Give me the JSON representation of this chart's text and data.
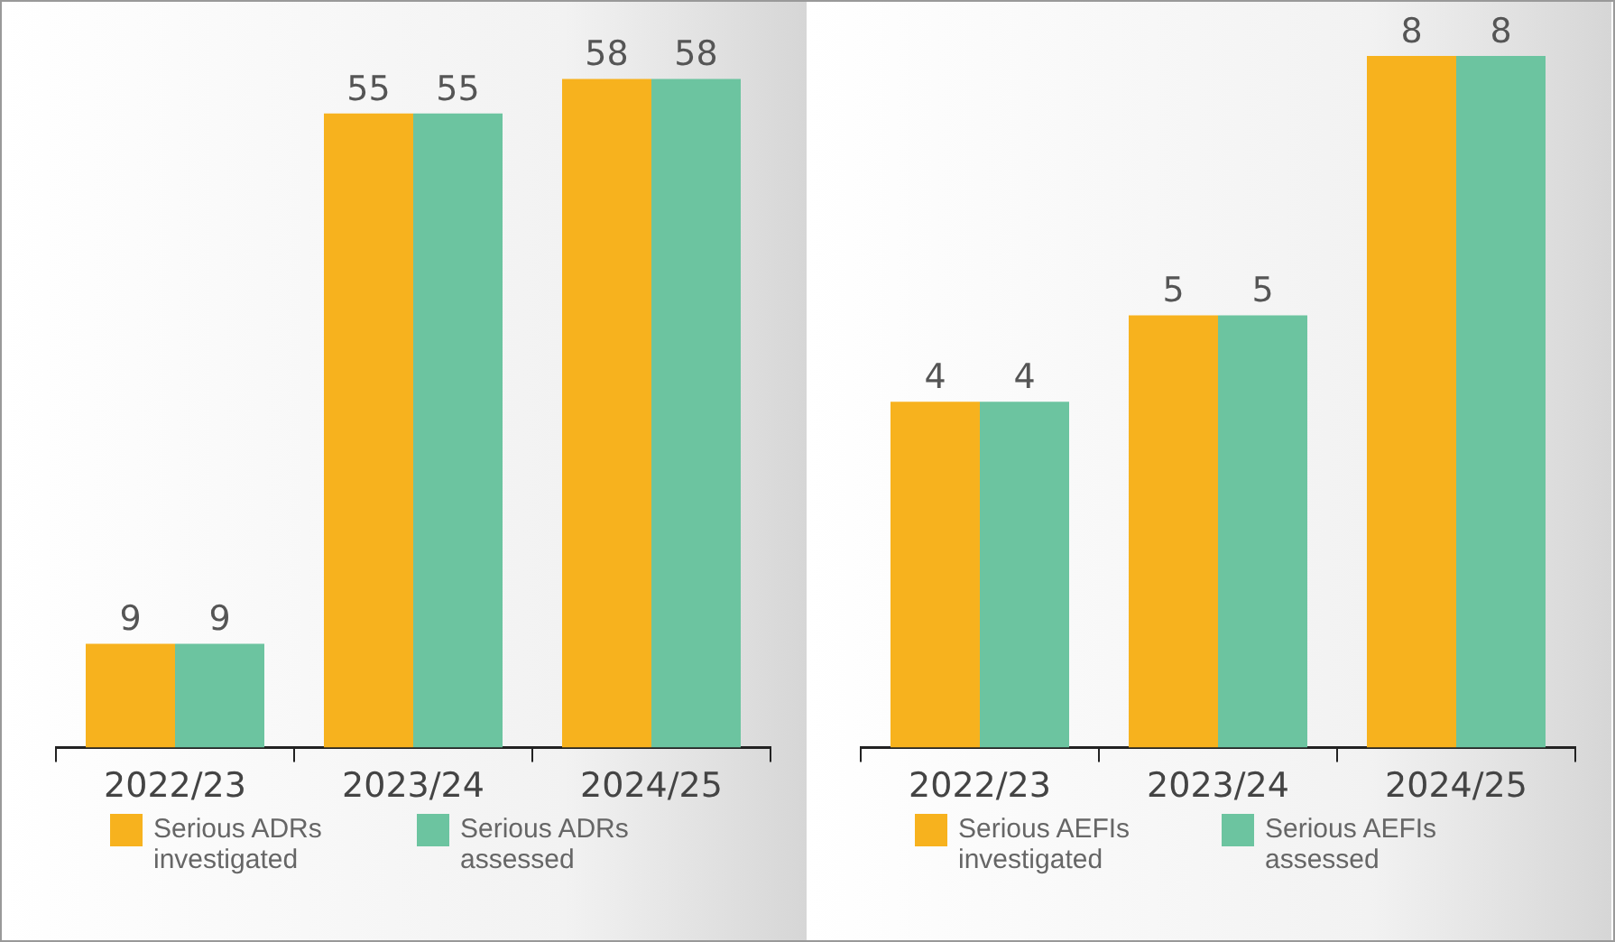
{
  "chart_data": [
    {
      "type": "bar",
      "categories": [
        "2022/23",
        "2023/24",
        "2024/25"
      ],
      "data_labels": true,
      "legend": "bottom",
      "grid": false,
      "series": [
        {
          "name": "Serious ADRs investigated",
          "color": "#f7b21e",
          "values": [
            9,
            55,
            58
          ]
        },
        {
          "name": "Serious ADRs assessed",
          "color": "#6cc4a0",
          "values": [
            9,
            55,
            58
          ]
        }
      ]
    },
    {
      "type": "bar",
      "categories": [
        "2022/23",
        "2023/24",
        "2024/25"
      ],
      "data_labels": true,
      "legend": "bottom",
      "grid": false,
      "series": [
        {
          "name": "Serious AEFIs investigated",
          "color": "#f7b21e",
          "values": [
            4,
            5,
            8
          ]
        },
        {
          "name": "Serious AEFIs assessed",
          "color": "#6cc4a0",
          "values": [
            4,
            5,
            8
          ]
        }
      ]
    }
  ]
}
